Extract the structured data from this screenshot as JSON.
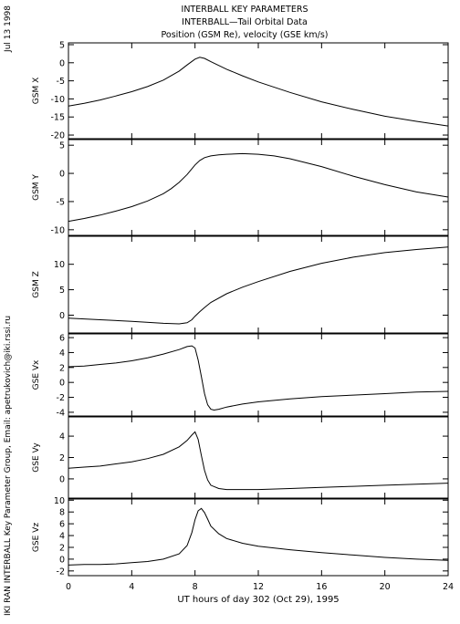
{
  "header": {
    "title_lines": [
      "INTERBALL KEY PARAMETERS",
      "INTERBALL—Tail Orbital Data",
      "Position (GSM Re), velocity (GSE km/s)"
    ],
    "date_stamp": "Jul 13 1998",
    "credit": "IKI RAN INTERBALL Key Parameter Group, Email: apetrukovich@iki.rssi.ru"
  },
  "chart_data": [
    {
      "type": "line",
      "ylabel": "GSM X",
      "xlim": [
        0,
        24
      ],
      "ylim": [
        -21,
        5.5
      ],
      "yticks": [
        5,
        0,
        -5,
        -10,
        -15,
        -20
      ],
      "series": [
        {
          "x": [
            0,
            1,
            2,
            3,
            4,
            5,
            6,
            7,
            7.5,
            8,
            8.3,
            8.6,
            9,
            10,
            11,
            12,
            14,
            16,
            18,
            20,
            22,
            24
          ],
          "y": [
            -12,
            -11.2,
            -10.3,
            -9.2,
            -8,
            -6.6,
            -4.8,
            -2.3,
            -0.6,
            1,
            1.5,
            1.2,
            0.3,
            -1.8,
            -3.6,
            -5.3,
            -8.2,
            -10.8,
            -12.9,
            -14.8,
            -16.2,
            -17.5
          ]
        }
      ]
    },
    {
      "type": "line",
      "ylabel": "GSM Y",
      "xlim": [
        0,
        24
      ],
      "ylim": [
        -11,
        6
      ],
      "yticks": [
        5,
        0,
        -5,
        -10
      ],
      "series": [
        {
          "x": [
            0,
            1,
            2,
            3,
            4,
            5,
            6,
            6.5,
            7,
            7.5,
            8,
            8.3,
            8.6,
            9,
            9.5,
            10,
            11,
            12,
            13,
            14,
            16,
            18,
            20,
            22,
            24
          ],
          "y": [
            -8.5,
            -8,
            -7.4,
            -6.7,
            -5.9,
            -4.9,
            -3.6,
            -2.7,
            -1.6,
            -0.2,
            1.5,
            2.3,
            2.8,
            3.1,
            3.3,
            3.4,
            3.5,
            3.4,
            3.1,
            2.6,
            1.2,
            -0.5,
            -2,
            -3.3,
            -4.2
          ]
        }
      ]
    },
    {
      "type": "line",
      "ylabel": "GSM Z",
      "xlim": [
        0,
        24
      ],
      "ylim": [
        -3.5,
        15.5
      ],
      "yticks": [
        10,
        5,
        0
      ],
      "series": [
        {
          "x": [
            0,
            2,
            4,
            6,
            7,
            7.5,
            7.8,
            8,
            8.3,
            8.6,
            9,
            10,
            11,
            12,
            14,
            16,
            18,
            20,
            22,
            24
          ],
          "y": [
            -0.6,
            -0.9,
            -1.2,
            -1.6,
            -1.7,
            -1.5,
            -0.9,
            -0.2,
            0.7,
            1.5,
            2.5,
            4.2,
            5.5,
            6.6,
            8.6,
            10.2,
            11.4,
            12.3,
            12.9,
            13.4
          ]
        }
      ]
    },
    {
      "type": "line",
      "ylabel": "GSE Vx",
      "xlim": [
        0,
        24
      ],
      "ylim": [
        -4.5,
        6.5
      ],
      "yticks": [
        6,
        4,
        2,
        0,
        -2,
        -4
      ],
      "series": [
        {
          "x": [
            0,
            1,
            2,
            3,
            4,
            5,
            6,
            7,
            7.5,
            7.8,
            8,
            8.2,
            8.4,
            8.6,
            8.8,
            9,
            9.2,
            9.5,
            10,
            11,
            12,
            14,
            16,
            18,
            20,
            22,
            24
          ],
          "y": [
            2.1,
            2.2,
            2.4,
            2.6,
            2.9,
            3.3,
            3.8,
            4.4,
            4.8,
            4.9,
            4.6,
            3,
            0.8,
            -1.5,
            -3,
            -3.6,
            -3.7,
            -3.6,
            -3.3,
            -2.9,
            -2.6,
            -2.2,
            -1.9,
            -1.7,
            -1.5,
            -1.3,
            -1.2
          ]
        }
      ]
    },
    {
      "type": "line",
      "ylabel": "GSE Vy",
      "xlim": [
        0,
        24
      ],
      "ylim": [
        -1.8,
        5.8
      ],
      "yticks": [
        4,
        2,
        0
      ],
      "series": [
        {
          "x": [
            0,
            1,
            2,
            3,
            4,
            5,
            6,
            7,
            7.5,
            7.8,
            8,
            8.2,
            8.4,
            8.6,
            8.8,
            9,
            9.5,
            10,
            12,
            14,
            16,
            18,
            20,
            22,
            24
          ],
          "y": [
            1,
            1.1,
            1.2,
            1.4,
            1.6,
            1.9,
            2.3,
            3,
            3.6,
            4.1,
            4.4,
            3.7,
            2.2,
            0.8,
            -0.1,
            -0.6,
            -0.9,
            -1,
            -1,
            -0.9,
            -0.8,
            -0.7,
            -0.6,
            -0.5,
            -0.4
          ]
        }
      ]
    },
    {
      "type": "line",
      "ylabel": "GSE Vz",
      "xlim": [
        0,
        24
      ],
      "ylim": [
        -2.8,
        10.2
      ],
      "yticks": [
        10,
        8,
        6,
        4,
        2,
        0,
        -2
      ],
      "series": [
        {
          "x": [
            0,
            1,
            2,
            3,
            4,
            5,
            6,
            7,
            7.5,
            7.8,
            8,
            8.2,
            8.4,
            8.6,
            8.8,
            9,
            9.5,
            10,
            11,
            12,
            14,
            16,
            18,
            20,
            22,
            24
          ],
          "y": [
            -1,
            -0.9,
            -0.9,
            -0.8,
            -0.6,
            -0.4,
            0,
            0.9,
            2.3,
            4.5,
            6.7,
            8.2,
            8.6,
            7.9,
            6.8,
            5.6,
            4.3,
            3.5,
            2.7,
            2.2,
            1.6,
            1.1,
            0.7,
            0.3,
            0,
            -0.2
          ]
        }
      ]
    }
  ],
  "xaxis": {
    "ticks": [
      0,
      4,
      8,
      12,
      16,
      20,
      24
    ],
    "label": "UT hours of day 302 (Oct 29), 1995"
  }
}
